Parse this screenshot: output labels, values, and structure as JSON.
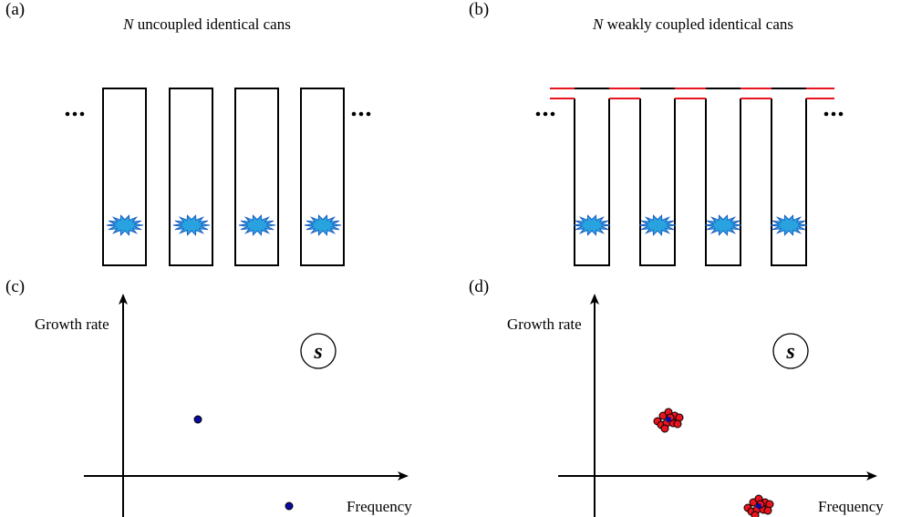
{
  "panels": [
    {
      "label": "(a)",
      "title_var": "N",
      "title_text": "uncoupled identical cans"
    },
    {
      "label": "(b)",
      "title_var": "N",
      "title_text": "weakly coupled identical cans"
    },
    {
      "label": "(c)",
      "y_axis": "Growth rate",
      "x_axis": "Frequency",
      "symbol": "s"
    },
    {
      "label": "(d)",
      "y_axis": "Growth rate",
      "x_axis": "Frequency",
      "symbol": "s"
    }
  ]
}
